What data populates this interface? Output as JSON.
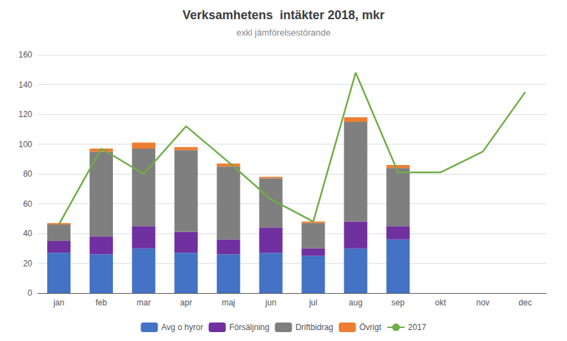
{
  "chart_data": {
    "type": "bar",
    "title": "Verksamhetens  intäkter 2018, mkr",
    "subtitle": "exkl jämförelsestörande",
    "categories": [
      "jan",
      "feb",
      "mar",
      "apr",
      "maj",
      "jun",
      "jul",
      "aug",
      "sep",
      "okt",
      "nov",
      "dec"
    ],
    "stacked": true,
    "series": [
      {
        "name": "Avg o hyror",
        "color": "#4472C4",
        "values": [
          27,
          26,
          30,
          27,
          26,
          27,
          25,
          30,
          36,
          0,
          0,
          0
        ]
      },
      {
        "name": "Försäljning",
        "color": "#7030A0",
        "values": [
          8,
          12,
          15,
          14,
          10,
          17,
          5,
          18,
          9,
          0,
          0,
          0
        ]
      },
      {
        "name": "Driftbidrag",
        "color": "#7F7F7F",
        "values": [
          11,
          57,
          52,
          55,
          49,
          33,
          17,
          67,
          39,
          0,
          0,
          0
        ]
      },
      {
        "name": "Övrigt",
        "color": "#ED7D31",
        "values": [
          1,
          2,
          4,
          2,
          2,
          1,
          1,
          3,
          2,
          0,
          0,
          0
        ]
      },
      {
        "name": "2017",
        "type": "line",
        "color": "#70AD47",
        "values": [
          46,
          97,
          80,
          112,
          88,
          63,
          48,
          148,
          81,
          81,
          95,
          135
        ]
      }
    ],
    "ylim": [
      0,
      160
    ],
    "yticks": [
      0,
      20,
      40,
      60,
      80,
      100,
      120,
      140,
      160
    ],
    "grid": true,
    "legend": "bottom"
  }
}
